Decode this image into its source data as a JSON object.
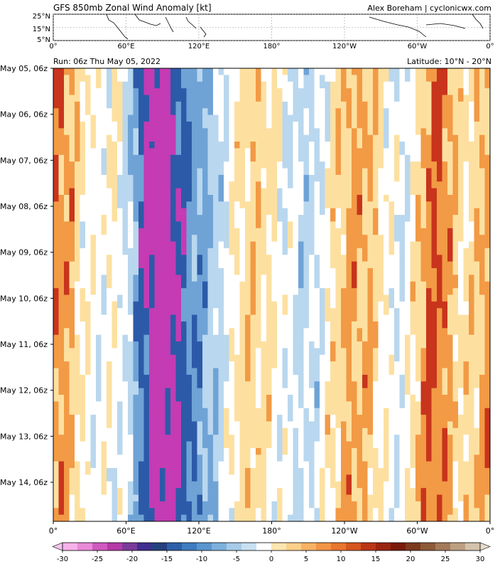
{
  "header": {
    "title": "GFS 850mb Zonal Wind Anomaly [kt]",
    "credit": "Alex Boreham | cyclonicwx.com",
    "run": "Run: 06z Thu May 05, 2022",
    "latitude": "Latitude: 10°N - 20°N"
  },
  "colors": {
    "strong_east": "#2c5aa8",
    "east": "#6fa3d6",
    "weak_east": "#b9d7ee",
    "neutral": "#ffffff",
    "weak_west": "#fde0a0",
    "west": "#f29a45",
    "strong_west": "#c8341c",
    "extreme_west": "#7a1a0a",
    "extreme_east": "#c43bb4"
  },
  "chart_data": [
    {
      "type": "map",
      "role": "locator map",
      "lat_ticks": [
        "25°N",
        "15°N",
        "5°N"
      ],
      "lon_ticks": [
        "0°",
        "60°E",
        "120°E",
        "180°",
        "120°W",
        "60°W",
        "0°"
      ]
    },
    {
      "type": "heatmap",
      "role": "hovmoller",
      "x_ticks": [
        "0°",
        "60°E",
        "120°E",
        "180°",
        "120°W",
        "60°W",
        "0°"
      ],
      "y_ticks": [
        "May 05, 06z",
        "May 06, 06z",
        "May 07, 06z",
        "May 08, 06z",
        "May 09, 06z",
        "May 10, 06z",
        "May 11, 06z",
        "May 12, 06z",
        "May 13, 06z",
        "May 14, 06z"
      ],
      "x_lon_range": [
        0,
        360
      ],
      "contour_interval_kt": 5,
      "bands": [
        {
          "lon": 0,
          "mag": 0.45
        },
        {
          "lon": 18,
          "mag": 0.35
        },
        {
          "lon": 30,
          "mag": -0.3
        },
        {
          "lon": 52,
          "mag": 0.25
        },
        {
          "lon": 80,
          "mag": -0.9
        },
        {
          "lon": 100,
          "mag": -0.45
        },
        {
          "lon": 125,
          "mag": -0.3
        },
        {
          "lon": 168,
          "mag": 0.3
        },
        {
          "lon": 210,
          "mag": -0.25
        },
        {
          "lon": 240,
          "mag": 0.25
        },
        {
          "lon": 262,
          "mag": 0.35
        },
        {
          "lon": 285,
          "mag": -0.2
        },
        {
          "lon": 320,
          "mag": 0.7
        },
        {
          "lon": 340,
          "mag": -0.25
        }
      ]
    },
    {
      "type": "colorbar",
      "min": -30,
      "max": 30,
      "ticks": [
        "-30",
        "-25",
        "-20",
        "-15",
        "-10",
        "-5",
        "0",
        "5",
        "10",
        "15",
        "20",
        "25",
        "30"
      ]
    }
  ]
}
